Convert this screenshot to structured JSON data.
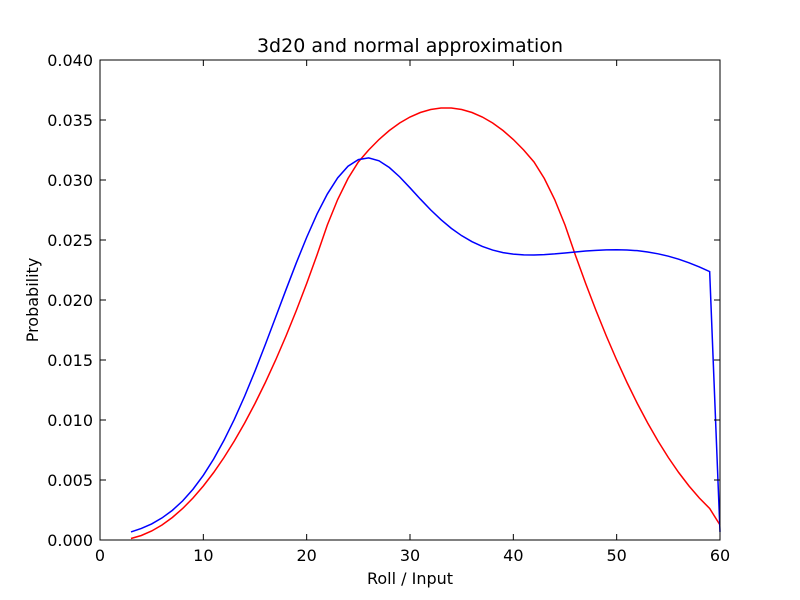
{
  "chart_data": {
    "type": "line",
    "title": "3d20 and normal approximation",
    "xlabel": "Roll / Input",
    "ylabel": "Probability",
    "xlim": [
      0,
      60
    ],
    "ylim": [
      0,
      0.04
    ],
    "x_ticks": [
      "0",
      "10",
      "20",
      "30",
      "40",
      "50",
      "60"
    ],
    "y_ticks": [
      "0.000",
      "0.005",
      "0.010",
      "0.015",
      "0.020",
      "0.025",
      "0.030",
      "0.035",
      "0.040"
    ],
    "grid": false,
    "series": [
      {
        "color": "#ff0000",
        "x": [
          3,
          4,
          5,
          6,
          7,
          8,
          9,
          10,
          11,
          12,
          13,
          14,
          15,
          16,
          17,
          18,
          19,
          20,
          21,
          22,
          23,
          24,
          25,
          26,
          27,
          28,
          29,
          30,
          31,
          32,
          33,
          34,
          35,
          36,
          37,
          38,
          39,
          40,
          41,
          42,
          43,
          44,
          45,
          46,
          47,
          48,
          49,
          50,
          51,
          52,
          53,
          54,
          55,
          56,
          57,
          58,
          59,
          60
        ],
        "y": [
          0.000125,
          0.000375,
          0.00075,
          0.00125,
          0.001875,
          0.002625,
          0.0035,
          0.0045,
          0.005625,
          0.006875,
          0.00825,
          0.00975,
          0.011375,
          0.013125,
          0.015,
          0.017,
          0.019125,
          0.021375,
          0.02375,
          0.02625,
          0.028375,
          0.030125,
          0.0315,
          0.0325,
          0.033375,
          0.034125,
          0.03475,
          0.03525,
          0.035625,
          0.035875,
          0.036,
          0.036,
          0.035875,
          0.035625,
          0.03525,
          0.03475,
          0.034125,
          0.033375,
          0.0325,
          0.0315,
          0.030125,
          0.028375,
          0.02625,
          0.02375,
          0.021375,
          0.019125,
          0.017,
          0.015,
          0.013125,
          0.011375,
          0.00975,
          0.00825,
          0.006875,
          0.005625,
          0.0045,
          0.0035,
          0.002625,
          0.00125
        ]
      },
      {
        "color": "#0000ff",
        "x": [
          3,
          4,
          5,
          6,
          7,
          8,
          9,
          10,
          11,
          12,
          13,
          14,
          15,
          16,
          17,
          18,
          19,
          20,
          21,
          22,
          23,
          24,
          25,
          26,
          27,
          28,
          29,
          30,
          31,
          32,
          33,
          34,
          35,
          36,
          37,
          38,
          39,
          40,
          41,
          42,
          43,
          44,
          45,
          46,
          47,
          48,
          49,
          50,
          51,
          52,
          53,
          54,
          55,
          56,
          57,
          58,
          59,
          60
        ],
        "y": [
          0.00067,
          0.00096,
          0.00134,
          0.00184,
          0.00247,
          0.00326,
          0.00423,
          0.00539,
          0.00675,
          0.00831,
          0.01006,
          0.01199,
          0.01408,
          0.01629,
          0.01857,
          0.02086,
          0.0231,
          0.02522,
          0.02716,
          0.02883,
          0.03018,
          0.03115,
          0.0317,
          0.03184,
          0.0316,
          0.03104,
          0.03026,
          0.02935,
          0.02841,
          0.02751,
          0.02669,
          0.02597,
          0.02536,
          0.02486,
          0.02446,
          0.02416,
          0.02395,
          0.02382,
          0.02376,
          0.02375,
          0.02378,
          0.02384,
          0.02392,
          0.024,
          0.02408,
          0.02414,
          0.02418,
          0.02419,
          0.02417,
          0.02411,
          0.024,
          0.02385,
          0.02365,
          0.0234,
          0.0231,
          0.02276,
          0.02237,
          0.00067
        ]
      }
    ]
  }
}
